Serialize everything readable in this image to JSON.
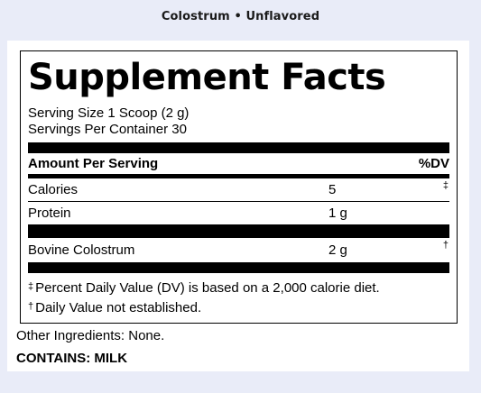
{
  "heading": "Colostrum • Unflavored",
  "panel": {
    "title": "Supplement Facts",
    "serving_size": "Serving Size 1 Scoop (2 g)",
    "servings_per_container": "Servings Per Container 30",
    "header": {
      "label": "Amount Per Serving",
      "dv": "%DV"
    },
    "rows": [
      {
        "name": "Calories",
        "amount": "5",
        "dv_symbol": "‡"
      },
      {
        "name": "Protein",
        "amount": "1 g",
        "dv_symbol": ""
      },
      {
        "name": "Bovine Colostrum",
        "amount": "2 g",
        "dv_symbol": "†"
      }
    ],
    "footnotes": [
      {
        "symbol": "‡",
        "text": "Percent Daily Value (DV) is based on a 2,000 calorie diet."
      },
      {
        "symbol": "†",
        "text": "Daily Value not established."
      }
    ]
  },
  "other_ingredients": "Other Ingredients: None.",
  "contains": "CONTAINS: MILK",
  "colors": {
    "page_background": "#e9ecf8",
    "panel_background": "#ffffff",
    "ink": "#000000"
  }
}
